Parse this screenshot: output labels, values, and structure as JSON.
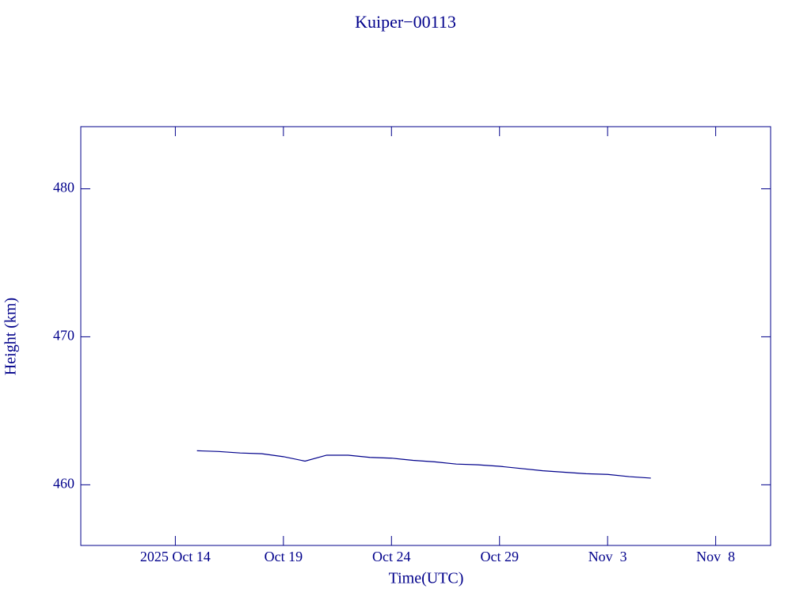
{
  "chart_data": {
    "type": "line",
    "title": "Kuiper−00113",
    "x_label": "Time(UTC)",
    "y_label": "Height (km)",
    "x": [
      "2025-10-15",
      "2025-10-16",
      "2025-10-17",
      "2025-10-18",
      "2025-10-19",
      "2025-10-20",
      "2025-10-21",
      "2025-10-22",
      "2025-10-23",
      "2025-10-24",
      "2025-10-25",
      "2025-10-26",
      "2025-10-27",
      "2025-10-28",
      "2025-10-29",
      "2025-10-30",
      "2025-10-31",
      "2025-11-01",
      "2025-11-02",
      "2025-11-03",
      "2025-11-04",
      "2025-11-05"
    ],
    "series": [
      {
        "name": "Kuiper−00113",
        "color": "#00008b",
        "values": [
          462.3,
          462.25,
          462.15,
          462.1,
          461.9,
          461.6,
          462.0,
          462.0,
          461.85,
          461.8,
          461.65,
          461.55,
          461.4,
          461.35,
          461.25,
          461.1,
          460.95,
          460.85,
          460.75,
          460.7,
          460.55,
          460.45
        ]
      }
    ],
    "xlim": [
      "2025-10-09T15:00",
      "2025-11-10T13:00"
    ],
    "xticks": [
      {
        "value": "2025-10-14",
        "label": "2025 Oct 14"
      },
      {
        "value": "2025-10-19",
        "label": "Oct 19"
      },
      {
        "value": "2025-10-24",
        "label": "Oct 24"
      },
      {
        "value": "2025-10-29",
        "label": "Oct 29"
      },
      {
        "value": "2025-11-03",
        "label": "Nov  3"
      },
      {
        "value": "2025-11-08",
        "label": "Nov  8"
      }
    ],
    "ylim": [
      455.9,
      484.2
    ],
    "yticks": [
      460,
      470,
      480
    ],
    "grid": false
  }
}
